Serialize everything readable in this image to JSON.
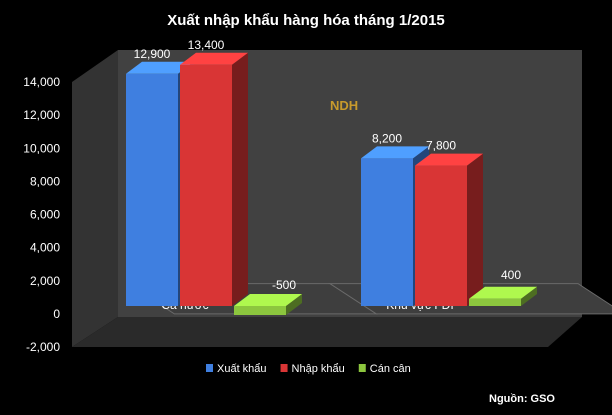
{
  "chart_data": {
    "type": "bar",
    "title": "Xuất nhập khẩu hàng hóa tháng 1/2015",
    "categories": [
      "Cả nước",
      "Khu vực FDI"
    ],
    "series": [
      {
        "name": "Xuất khẩu",
        "values": [
          12900,
          8200
        ],
        "labels": [
          "12,900",
          "8,200"
        ],
        "color": "#3f7fe0"
      },
      {
        "name": "Nhập khẩu",
        "values": [
          13400,
          7800
        ],
        "labels": [
          "13,400",
          "7,800"
        ],
        "color": "#d93535"
      },
      {
        "name": "Cán cân",
        "values": [
          -500,
          400
        ],
        "labels": [
          "-500",
          "400"
        ],
        "color": "#8cc63e"
      }
    ],
    "ylim": [
      -2000,
      14000
    ],
    "yticks": [
      "-2,000",
      "0",
      "2,000",
      "4,000",
      "6,000",
      "8,000",
      "10,000",
      "12,000",
      "14,000"
    ],
    "ytick_values": [
      -2000,
      0,
      2000,
      4000,
      6000,
      8000,
      10000,
      12000,
      14000
    ],
    "legend_position": "bottom",
    "grid": false,
    "source": "Nguồn: GSO",
    "watermark": "NDH"
  }
}
